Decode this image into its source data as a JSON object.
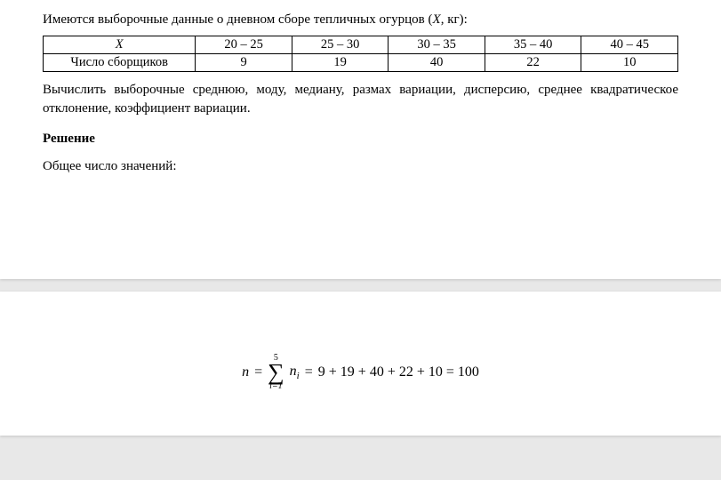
{
  "intro": {
    "prefix": "Имеются выборочные данные о дневном сборе тепличных огурцов (",
    "var": "X",
    "suffix": ", кг):"
  },
  "table": {
    "row1": [
      "X",
      "20 – 25",
      "25 – 30",
      "30 – 35",
      "35 – 40",
      "40 – 45"
    ],
    "row2": [
      "Число сборщиков",
      "9",
      "19",
      "40",
      "22",
      "10"
    ]
  },
  "task_text": "Вычислить выборочные среднюю, моду, медиану, размах вариации, дисперсию, среднее квадратическое отклонение, коэффициент вариации.",
  "solution_heading": "Решение",
  "total_label": "Общее число значений:",
  "formula": {
    "n": "n",
    "eq1": "=",
    "sigma_top": "5",
    "sigma_bot": "i=1",
    "term": "n",
    "term_sub": "i",
    "eq2": "=",
    "rhs": "9 + 19 + 40 + 22 + 10 = 100"
  },
  "style": {
    "font_family": "Times New Roman",
    "base_font_size_pt": 11,
    "table_border_color": "#000000",
    "page_bg": "#ffffff",
    "gap_bg": "#e8e8e8"
  }
}
